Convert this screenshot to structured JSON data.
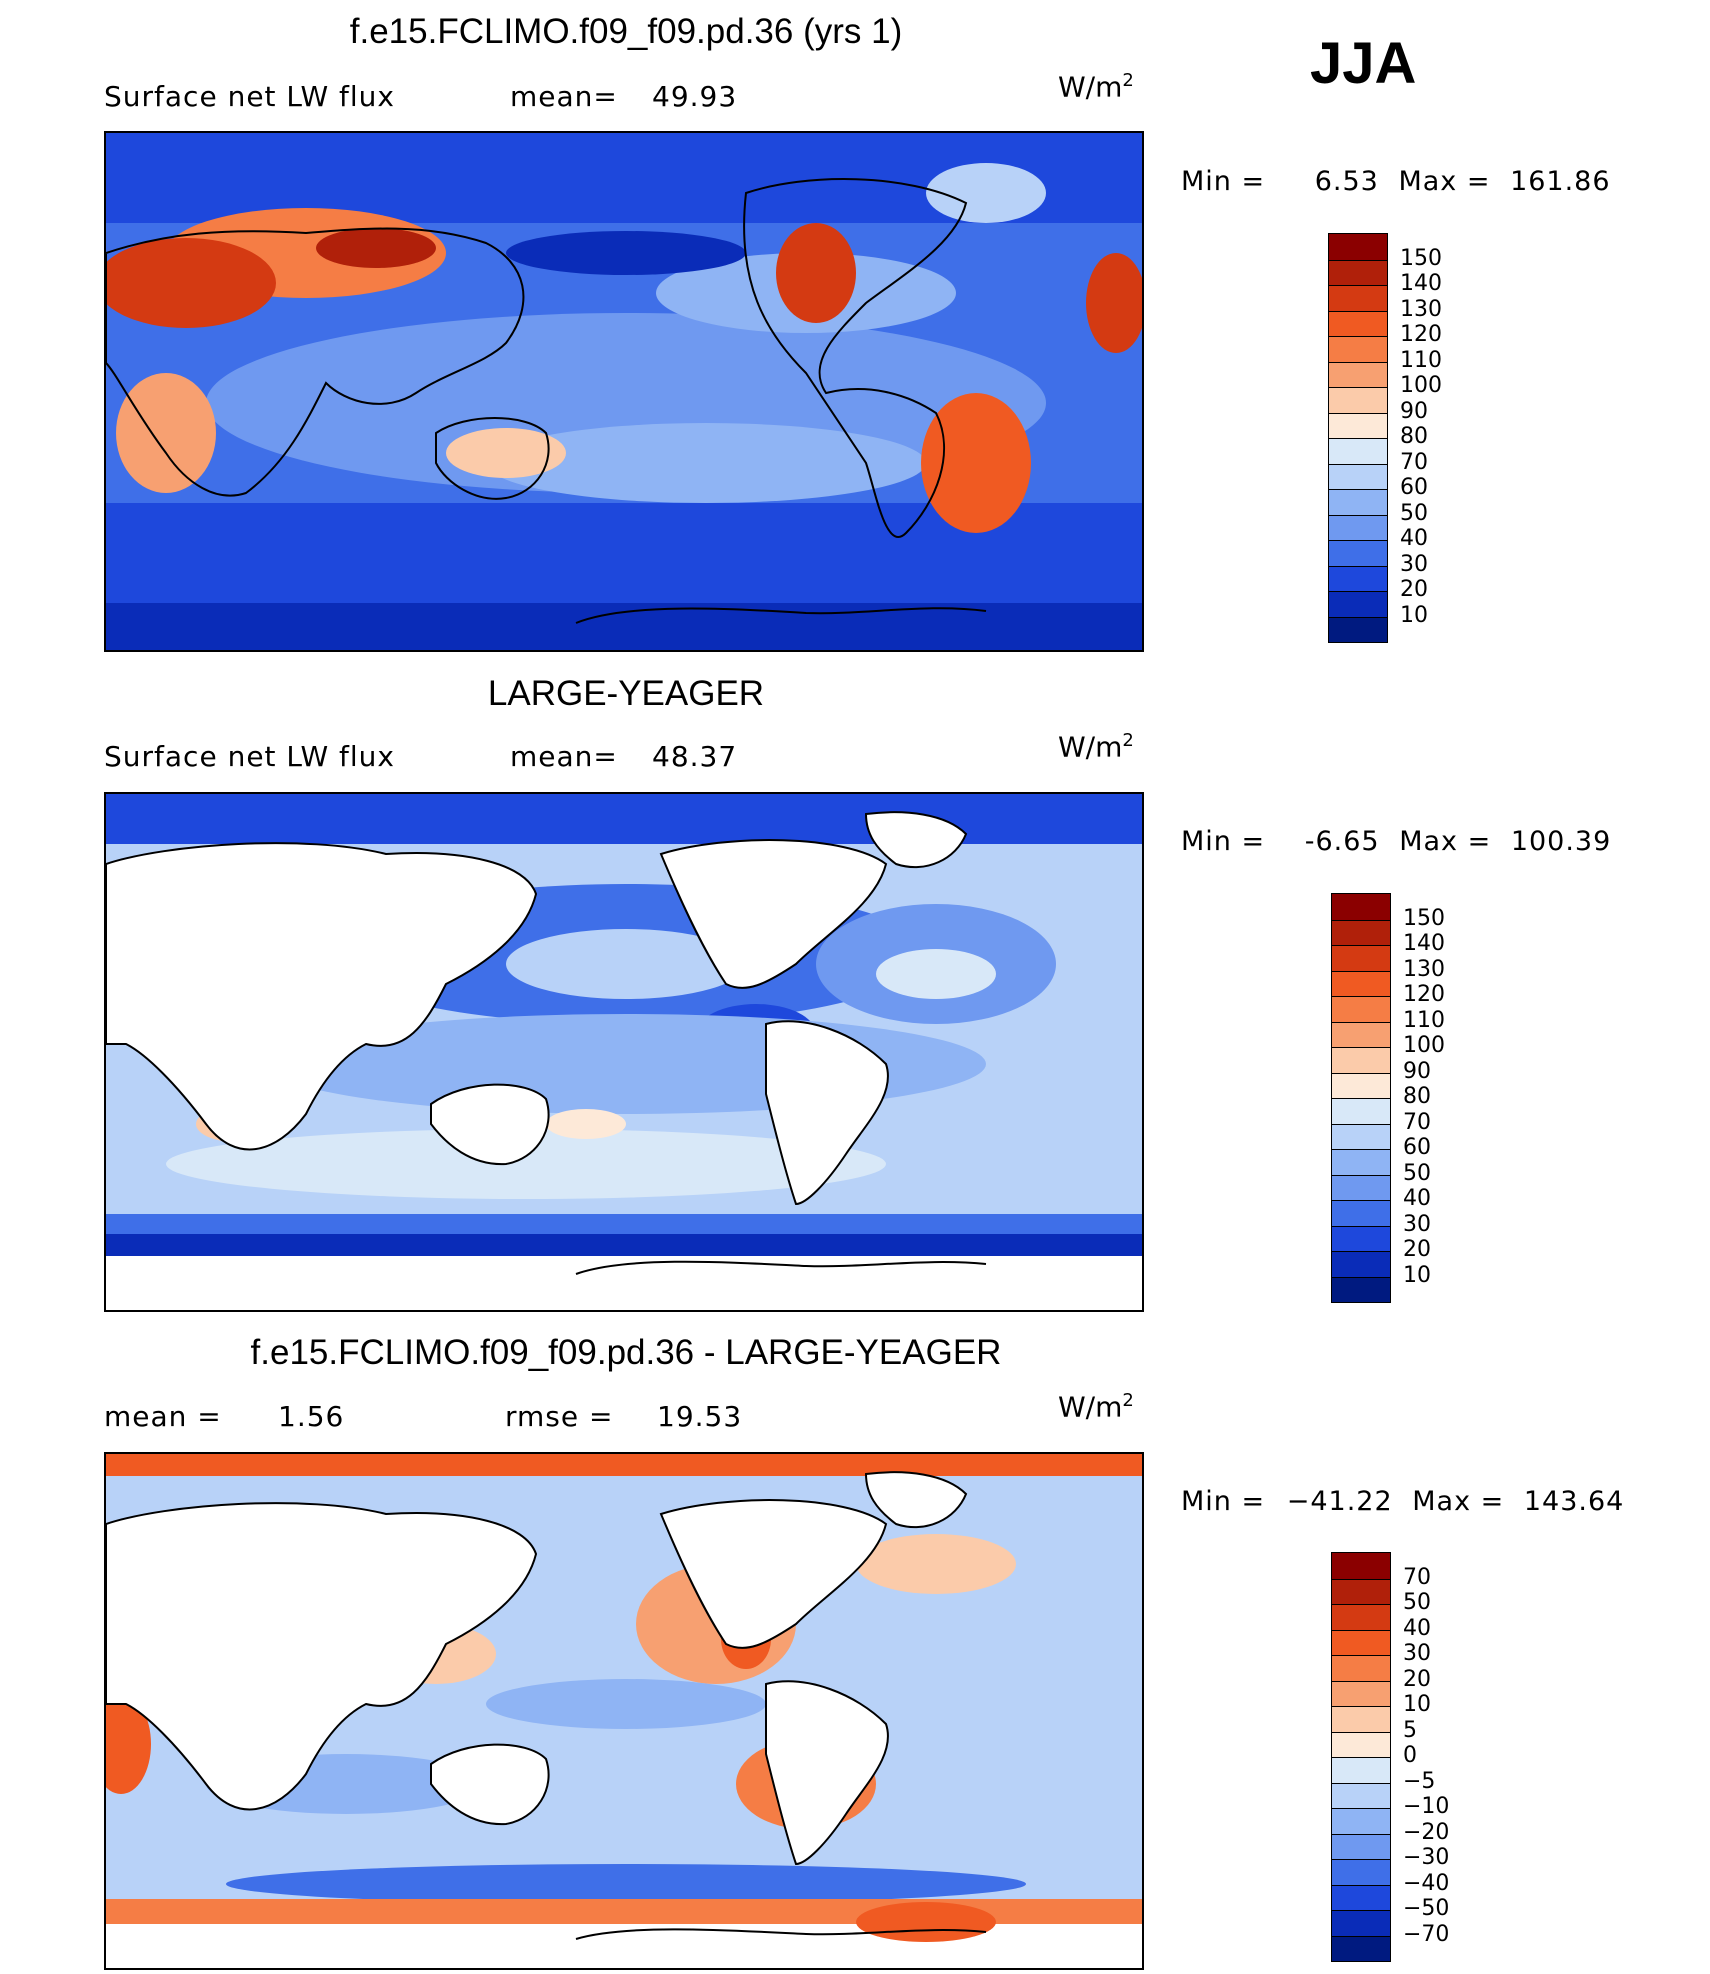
{
  "season": "JJA",
  "units_base": "W/m",
  "units_exp": "2",
  "chart_data": [
    {
      "type": "heatmap",
      "title": "f.e15.FCLIMO.f09_f09.pd.36 (yrs 1)",
      "left_label": "Surface net LW flux",
      "stat_label": "mean=",
      "stat_value": "49.93",
      "min_label": "Min =",
      "min_value": "6.53",
      "max_label": "Max =",
      "max_value": "161.86",
      "levels": [
        "150",
        "140",
        "130",
        "120",
        "110",
        "100",
        "90",
        "80",
        "70",
        "60",
        "50",
        "40",
        "30",
        "20",
        "10"
      ],
      "colors": [
        "#8b0000",
        "#b0200a",
        "#d43a12",
        "#f05a22",
        "#f57d45",
        "#f7a071",
        "#fbcbaa",
        "#fde9d8",
        "#d8e8f8",
        "#b8d2f8",
        "#8fb4f4",
        "#6f99f0",
        "#3f6fe8",
        "#1e48dc",
        "#0a2cb8",
        "#001a80"
      ],
      "land_mode": "data"
    },
    {
      "type": "heatmap",
      "title": "LARGE-YEAGER",
      "left_label": "Surface net LW flux",
      "stat_label": "mean=",
      "stat_value": "48.37",
      "min_label": "Min =",
      "min_value": "-6.65",
      "max_label": "Max =",
      "max_value": "100.39",
      "levels": [
        "150",
        "140",
        "130",
        "120",
        "110",
        "100",
        "90",
        "80",
        "70",
        "60",
        "50",
        "40",
        "30",
        "20",
        "10"
      ],
      "colors": [
        "#8b0000",
        "#b0200a",
        "#d43a12",
        "#f05a22",
        "#f57d45",
        "#f7a071",
        "#fbcbaa",
        "#fde9d8",
        "#d8e8f8",
        "#b8d2f8",
        "#8fb4f4",
        "#6f99f0",
        "#3f6fe8",
        "#1e48dc",
        "#0a2cb8",
        "#001a80"
      ],
      "land_mode": "blank"
    },
    {
      "type": "heatmap",
      "title": "f.e15.FCLIMO.f09_f09.pd.36 - LARGE-YEAGER",
      "left_label": "mean =",
      "left_value": "1.56",
      "stat_label": "rmse =",
      "stat_value": "19.53",
      "min_label": "Min =",
      "min_value": "−41.22",
      "max_label": "Max =",
      "max_value": "143.64",
      "levels": [
        "70",
        "50",
        "40",
        "30",
        "20",
        "10",
        "5",
        "0",
        "−5",
        "−10",
        "−20",
        "−30",
        "−40",
        "−50",
        "−70"
      ],
      "colors": [
        "#8b0000",
        "#b0200a",
        "#d43a12",
        "#f05a22",
        "#f57d45",
        "#f7a071",
        "#fbcbaa",
        "#fde9d8",
        "#d8e8f8",
        "#b8d2f8",
        "#8fb4f4",
        "#6f99f0",
        "#3f6fe8",
        "#1e48dc",
        "#0a2cb8",
        "#001a80"
      ],
      "land_mode": "blank"
    }
  ]
}
